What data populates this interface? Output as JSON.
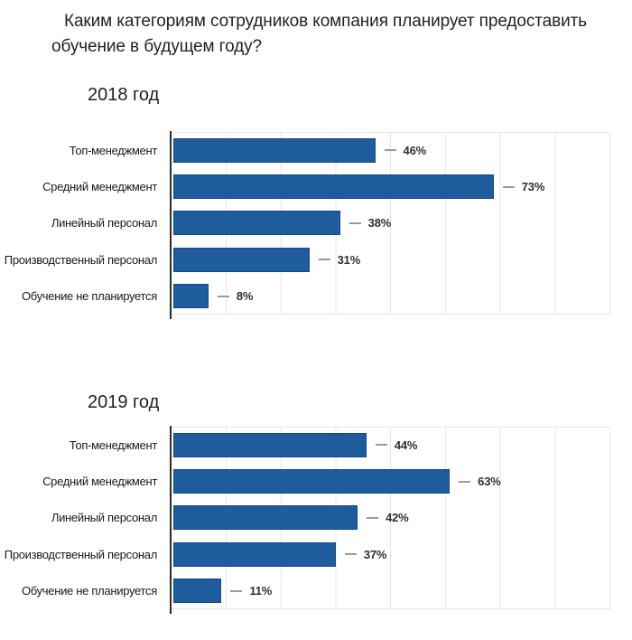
{
  "title": "Каким категориям сотрудников компания планирует предоставить обучение в будущем году?",
  "style": {
    "bar_color": "#1F5C9E",
    "bar_border": "#17477C",
    "axis_color": "#2B2B2B",
    "grid_color": "#E7E7E7",
    "callout_color": "#9A9A9A",
    "text_color": "#262626"
  },
  "chart_data": [
    {
      "type": "bar",
      "orientation": "horizontal",
      "title": "2018 год",
      "categories": [
        "Топ-менеджмент",
        "Средний менеджмент",
        "Линейный персонал",
        "Производственный персонал",
        "Обучение не планируется"
      ],
      "values": [
        46,
        73,
        38,
        31,
        8
      ],
      "value_labels": [
        "46%",
        "73%",
        "38%",
        "31%",
        "8%"
      ],
      "xlabel": "",
      "ylabel": "",
      "xlim": [
        0,
        100
      ],
      "grid": "vertical, 8 divisions",
      "legend": "none"
    },
    {
      "type": "bar",
      "orientation": "horizontal",
      "title": "2019 год",
      "categories": [
        "Топ-менеджмент",
        "Средний менеджмент",
        "Линейный персонал",
        "Производственный персонал",
        "Обучение не планируется"
      ],
      "values": [
        44,
        63,
        42,
        37,
        11
      ],
      "value_labels": [
        "44%",
        "63%",
        "42%",
        "37%",
        "11%"
      ],
      "xlabel": "",
      "ylabel": "",
      "xlim": [
        0,
        100
      ],
      "grid": "vertical, 8 divisions",
      "legend": "none"
    }
  ]
}
